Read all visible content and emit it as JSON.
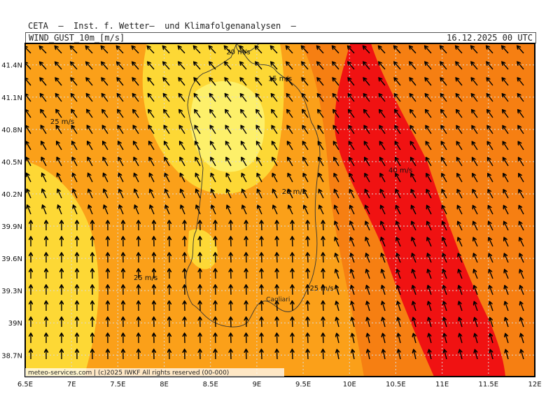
{
  "header": {
    "institute": "CETA  –  Inst. f. Wetter–  und Klimafolgenanalysen  –",
    "variable": "WIND_GUST_10m_[m/s]",
    "datetime": "16.12.2025 00 UTC"
  },
  "map": {
    "lon_range": [
      6.5,
      12.0
    ],
    "lat_range": [
      38.5,
      41.6
    ],
    "lon_ticks": [
      "6.5E",
      "7E",
      "7.5E",
      "8E",
      "8.5E",
      "9E",
      "9.5E",
      "10E",
      "10.5E",
      "11E",
      "11.5E",
      "12E"
    ],
    "lat_ticks": [
      "41.4N",
      "41.1N",
      "40.8N",
      "40.5N",
      "40.2N",
      "39.9N",
      "39.6N",
      "39.3N",
      "39N",
      "38.7N"
    ],
    "contour_labels": [
      {
        "text": "20 m/s",
        "lon": 8.8,
        "lat": 41.5
      },
      {
        "text": "15 m/s",
        "lon": 9.25,
        "lat": 41.25
      },
      {
        "text": "25 m/s",
        "lon": 6.9,
        "lat": 40.85
      },
      {
        "text": "20 m/s",
        "lon": 9.4,
        "lat": 40.2
      },
      {
        "text": "40 m/s",
        "lon": 10.55,
        "lat": 40.4
      },
      {
        "text": "25 m/s",
        "lon": 7.8,
        "lat": 39.4
      },
      {
        "text": "25 m/s",
        "lon": 9.7,
        "lat": 39.3
      }
    ],
    "city_label": {
      "text": "Cagliari",
      "lon": 9.1,
      "lat": 39.2
    },
    "colors": {
      "c15": "#fdf06a",
      "c20": "#fdd835",
      "c25": "#fba019",
      "c30": "#f67f12",
      "c40": "#f01212",
      "arrow": "#000000",
      "grid": "#d9d9d9",
      "coast": "#333333"
    },
    "copyright": "meteo-services.com  |  (c)2025 IWKF  All rights reserved  (00-000)"
  }
}
